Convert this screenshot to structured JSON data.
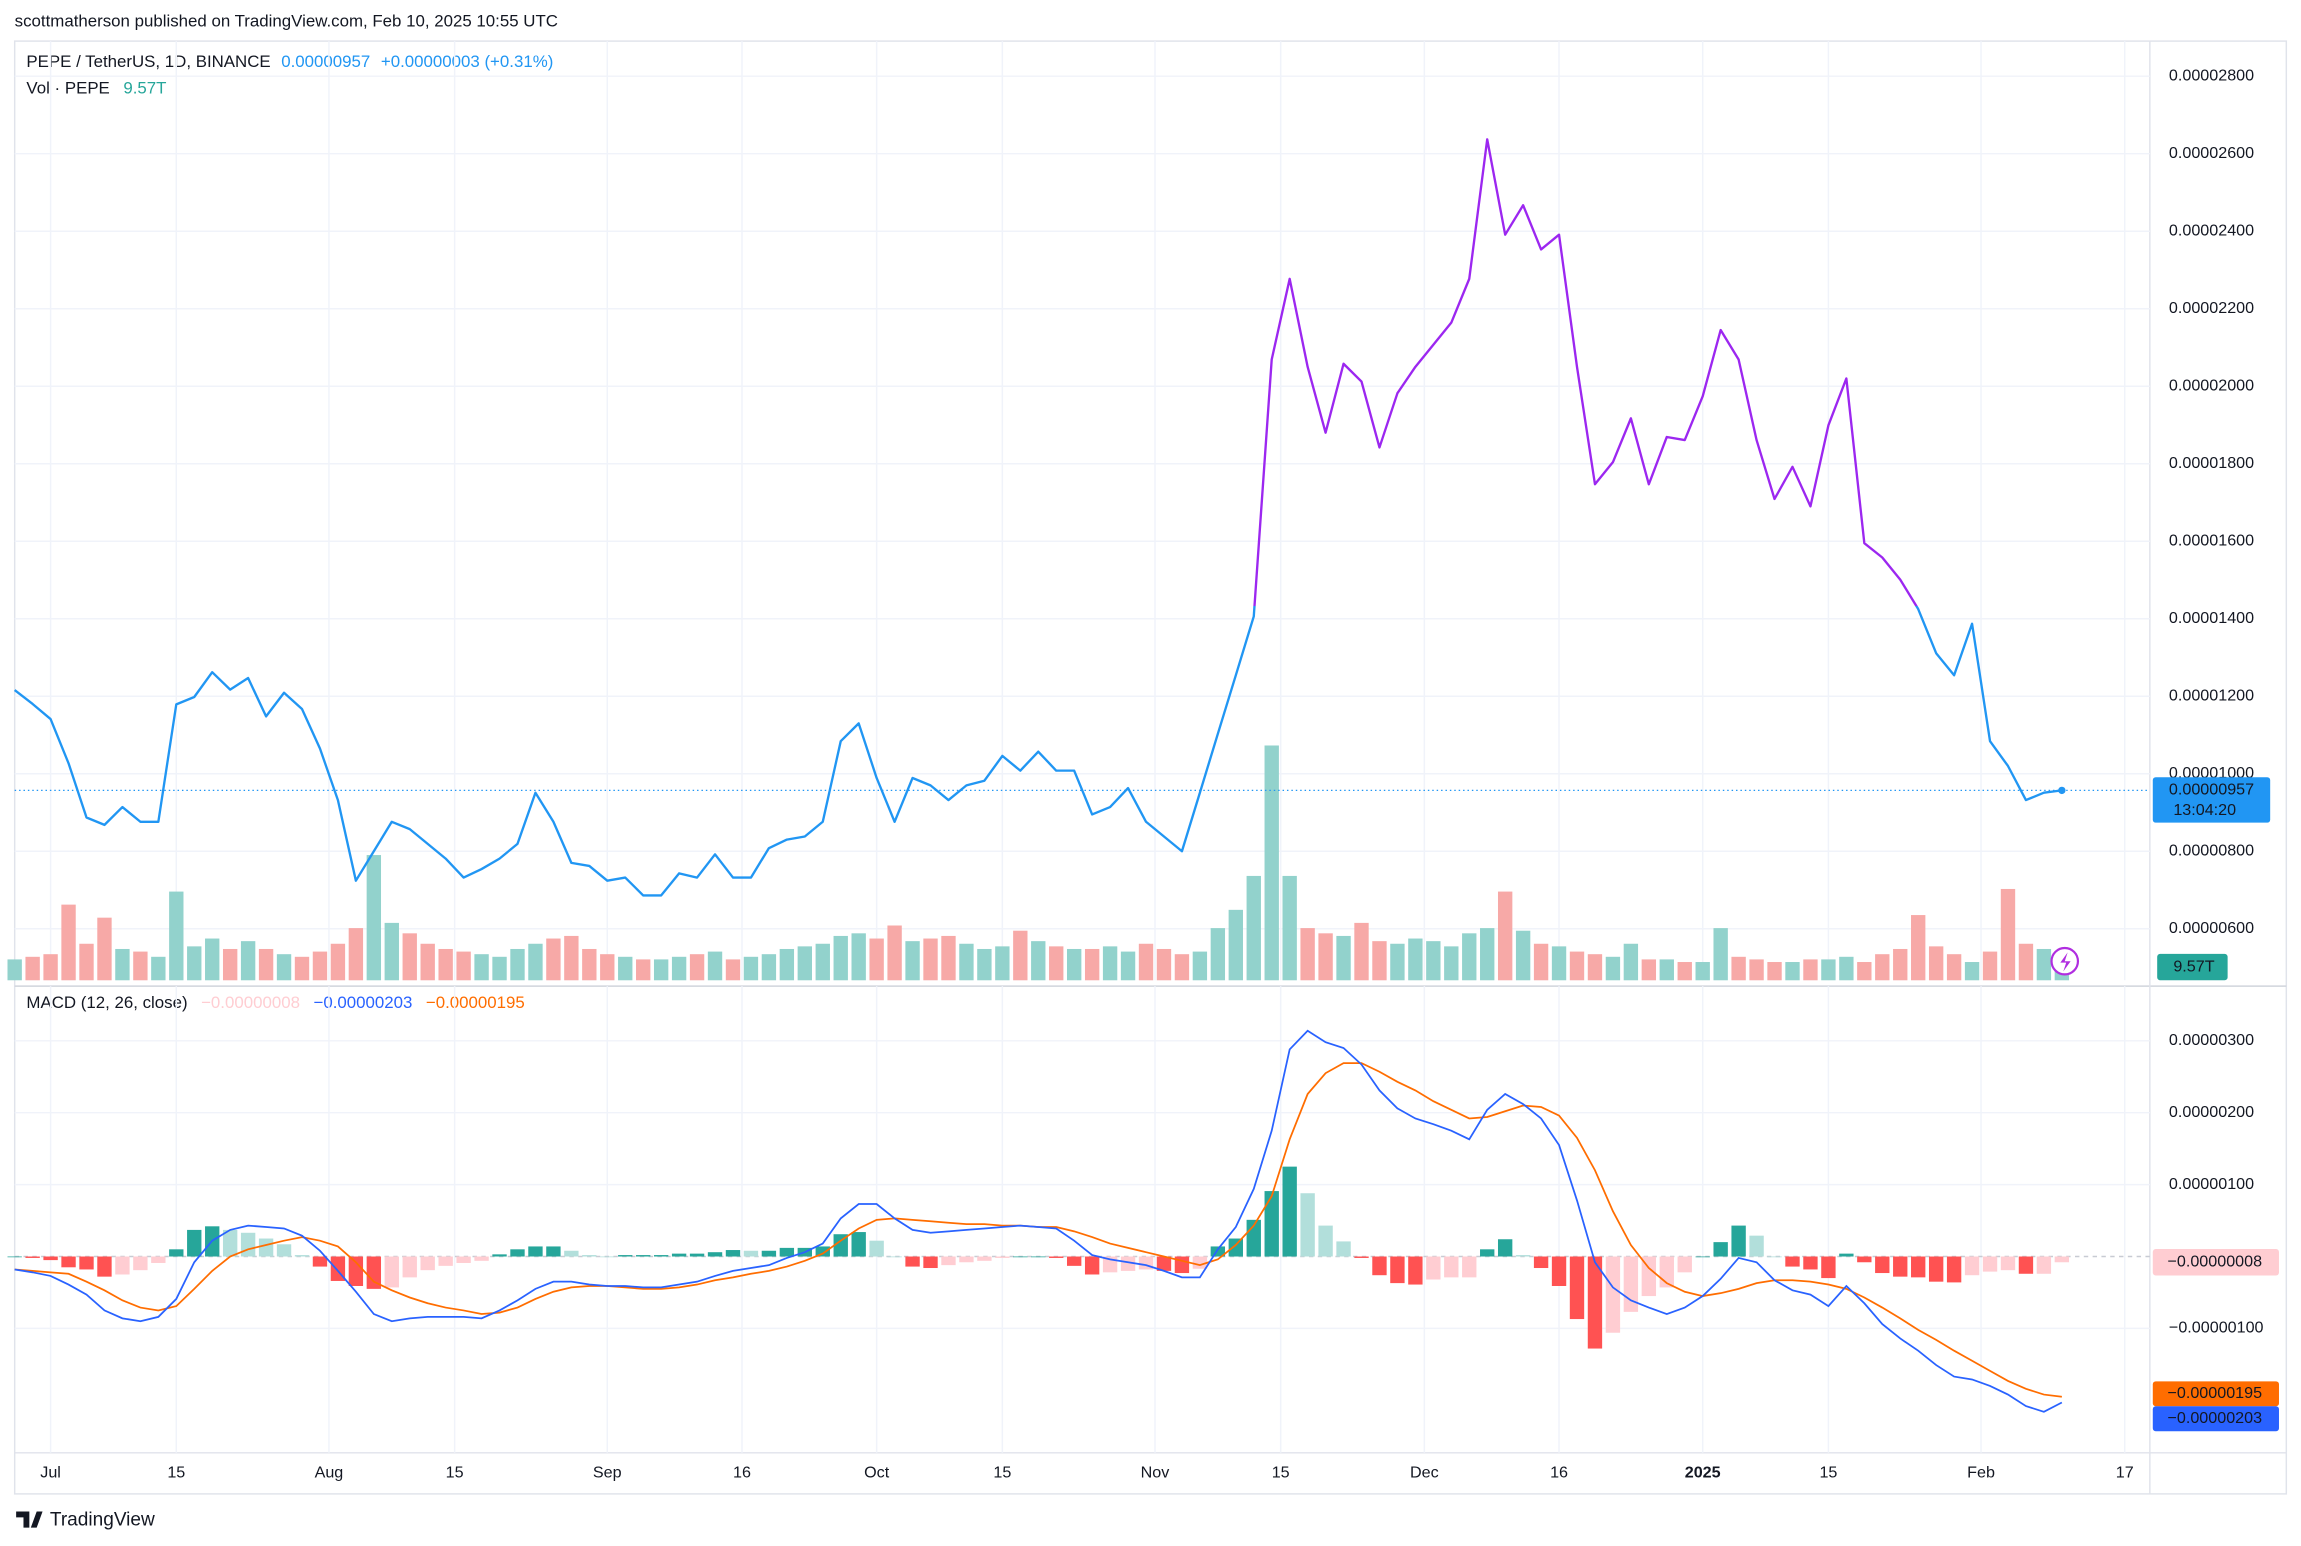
{
  "header": "scottmatherson published on TradingView.com, Feb 10, 2025 10:55 UTC",
  "chart_data": {
    "type": "line",
    "title": "PEPE / TetherUS, 1D, BINANCE",
    "last_price": "0.00000957",
    "change": "+0.00000003 (+0.31%)",
    "countdown": "13:04:20",
    "color_high": "#9c27f0",
    "color_low": "#2196f3",
    "x": [
      -4,
      -2,
      0,
      2,
      4,
      6,
      8,
      10,
      12,
      14,
      16,
      18,
      20,
      22,
      24,
      26,
      28,
      30,
      32,
      34,
      36,
      38,
      40,
      42,
      44,
      46,
      48,
      50,
      52,
      54,
      56,
      58,
      60,
      62,
      64,
      66,
      68,
      70,
      72,
      74,
      76,
      78,
      80,
      82,
      84,
      86,
      88,
      90,
      92,
      94,
      96,
      98,
      100,
      102,
      104,
      106,
      108,
      110,
      112,
      114,
      116,
      118,
      120,
      122,
      124,
      126,
      128,
      130,
      132,
      134,
      136,
      138,
      140,
      142,
      144,
      146,
      148,
      150,
      152,
      154,
      156,
      158,
      160,
      162,
      164,
      166,
      168,
      170,
      172,
      174,
      176,
      178,
      180,
      182,
      184,
      186,
      188,
      190,
      192,
      194,
      196,
      198,
      200,
      202,
      204,
      206,
      208,
      210,
      212,
      214,
      216,
      218,
      220,
      222,
      224
    ],
    "values": [
      1.216e-05,
      1.18e-05,
      1.141e-05,
      1.027e-05,
      8.87e-06,
      8.68e-06,
      9.14e-06,
      8.76e-06,
      8.76e-06,
      1.179e-05,
      1.198e-05,
      1.262e-05,
      1.217e-05,
      1.247e-05,
      1.148e-05,
      1.209e-05,
      1.167e-05,
      1.065e-05,
      9.32e-06,
      7.24e-06,
      8e-06,
      8.76e-06,
      8.57e-06,
      8.19e-06,
      7.81e-06,
      7.32e-06,
      7.54e-06,
      7.81e-06,
      8.19e-06,
      9.51e-06,
      8.76e-06,
      7.7e-06,
      7.62e-06,
      7.24e-06,
      7.32e-06,
      6.86e-06,
      6.86e-06,
      7.43e-06,
      7.32e-06,
      7.92e-06,
      7.32e-06,
      7.32e-06,
      8.08e-06,
      8.3e-06,
      8.38e-06,
      8.76e-06,
      1.084e-05,
      1.13e-05,
      9.89e-06,
      8.76e-06,
      9.89e-06,
      9.7e-06,
      9.32e-06,
      9.7e-06,
      9.82e-06,
      1.046e-05,
      1.008e-05,
      1.057e-05,
      1.008e-05,
      1.008e-05,
      8.95e-06,
      9.14e-06,
      9.63e-06,
      8.76e-06,
      8.38e-06,
      8e-06,
      9.51e-06,
      1.103e-05,
      1.254e-05,
      1.406e-05,
      2.069e-05,
      2.277e-05,
      2.05e-05,
      1.88e-05,
      2.058e-05,
      2.012e-05,
      1.842e-05,
      1.982e-05,
      2.05e-05,
      2.107e-05,
      2.164e-05,
      2.277e-05,
      2.637e-05,
      2.391e-05,
      2.467e-05,
      2.353e-05,
      2.391e-05,
      2.05e-05,
      1.747e-05,
      1.804e-05,
      1.917e-05,
      1.747e-05,
      1.869e-05,
      1.861e-05,
      1.974e-05,
      2.145e-05,
      2.069e-05,
      1.861e-05,
      1.709e-05,
      1.792e-05,
      1.69e-05,
      1.899e-05,
      2.02e-05,
      1.595e-05,
      1.558e-05,
      1.501e-05,
      1.425e-05,
      1.311e-05,
      1.254e-05,
      1.387e-05,
      1.084e-05,
      1.02e-05,
      9.32e-06,
      9.51e-06,
      9.57e-06
    ],
    "xlim": [
      -4,
      233.8
    ],
    "xticks": [
      {
        "value": 0,
        "label": "Jul"
      },
      {
        "value": 14,
        "label": "15"
      },
      {
        "value": 31,
        "label": "Aug"
      },
      {
        "value": 45,
        "label": "15"
      },
      {
        "value": 62,
        "label": "Sep"
      },
      {
        "value": 77,
        "label": "16"
      },
      {
        "value": 92,
        "label": "Oct"
      },
      {
        "value": 106,
        "label": "15"
      },
      {
        "value": 123,
        "label": "Nov"
      },
      {
        "value": 137,
        "label": "15"
      },
      {
        "value": 153,
        "label": "Dec"
      },
      {
        "value": 168,
        "label": "16"
      },
      {
        "value": 184,
        "label": "2025"
      },
      {
        "value": 198,
        "label": "15"
      },
      {
        "value": 215,
        "label": "Feb"
      },
      {
        "value": 231,
        "label": "17"
      }
    ],
    "ylim": [
      4.67e-06,
      2.883e-05
    ],
    "yticks": [
      {
        "value": 6e-06,
        "label": "0.00000600"
      },
      {
        "value": 8e-06,
        "label": "0.00000800"
      },
      {
        "value": 1e-05,
        "label": "0.00001000"
      },
      {
        "value": 1.2e-05,
        "label": "0.00001200"
      },
      {
        "value": 1.4e-05,
        "label": "0.00001400"
      },
      {
        "value": 1.6e-05,
        "label": "0.00001600"
      },
      {
        "value": 1.8e-05,
        "label": "0.00001800"
      },
      {
        "value": 2e-05,
        "label": "0.00002000"
      },
      {
        "value": 2.2e-05,
        "label": "0.00002200"
      },
      {
        "value": 2.4e-05,
        "label": "0.00002400"
      },
      {
        "value": 2.6e-05,
        "label": "0.00002600"
      },
      {
        "value": 2.8e-05,
        "label": "0.00002800"
      }
    ],
    "grid": true,
    "volume": {
      "title": "Vol · PEPE",
      "last_label": "9.57T",
      "up_color": "#92d2cc",
      "down_color": "#f7a9a7",
      "label_color": "#26a69a",
      "values": [
        8,
        9,
        10,
        29,
        14,
        24,
        12,
        11,
        9,
        34,
        13,
        16,
        12,
        15,
        12,
        10,
        9,
        11,
        14,
        20,
        48,
        22,
        18,
        14,
        12,
        11,
        10,
        9,
        12,
        14,
        16,
        17,
        12,
        10,
        9,
        8,
        8,
        9,
        10,
        11,
        8,
        9,
        10,
        12,
        13,
        14,
        17,
        18,
        16,
        21,
        15,
        16,
        17,
        14,
        12,
        13,
        19,
        15,
        13,
        12,
        12,
        13,
        11,
        14,
        12,
        10,
        11,
        20,
        27,
        40,
        90,
        40,
        20,
        18,
        17,
        22,
        15,
        14,
        16,
        15,
        13,
        18,
        20,
        34,
        19,
        14,
        13,
        11,
        10,
        9,
        14,
        8,
        8,
        7,
        7,
        20,
        9,
        8,
        7,
        7,
        8,
        8,
        9,
        7,
        10,
        12,
        25,
        13,
        10,
        7,
        11,
        35,
        14,
        12,
        9.57
      ]
    },
    "macd": {
      "type": "macd",
      "title": "MACD (12, 26, close)",
      "ylim": [
        -2.73e-06,
        3.76e-06
      ],
      "yticks": [
        {
          "value": 3e-06,
          "label": "0.00000300"
        },
        {
          "value": 2e-06,
          "label": "0.00000200"
        },
        {
          "value": 1e-06,
          "label": "0.00000100"
        },
        {
          "value": -1e-06,
          "label": "−0.00000100"
        }
      ],
      "histogram": {
        "last_label": "−0.00000008",
        "colors": [
          "#26a69a",
          "#b2dfdb",
          "#ff5252",
          "#ffcdd2"
        ],
        "values": [
          0,
          -2e-08,
          -5e-08,
          -1.5e-07,
          -1.8e-07,
          -2.8e-07,
          -2.5e-07,
          -1.9e-07,
          -9e-08,
          1e-07,
          3.7e-07,
          4.2e-07,
          3.7e-07,
          3.3e-07,
          2.5e-07,
          1.7e-07,
          2e-08,
          -1.4e-07,
          -3.4e-07,
          -4.1e-07,
          -4.5e-07,
          -4.3e-07,
          -2.9e-07,
          -1.9e-07,
          -1.3e-07,
          -9e-08,
          -6e-08,
          3e-08,
          1e-07,
          1.4e-07,
          1.4e-07,
          8e-08,
          2e-08,
          0,
          2e-08,
          2e-08,
          2e-08,
          4e-08,
          4e-08,
          6e-08,
          9e-08,
          8e-08,
          8e-08,
          1.2e-07,
          1.2e-07,
          1.4e-07,
          3.1e-07,
          3.4e-07,
          2.2e-07,
          0,
          -1.4e-07,
          -1.6e-07,
          -1.2e-07,
          -8e-08,
          -6e-08,
          -2e-08,
          0,
          0,
          -2e-08,
          -1.3e-07,
          -2.5e-07,
          -2.2e-07,
          -2e-07,
          -1.8e-07,
          -2e-07,
          -2.3e-07,
          -1.7e-07,
          1.4e-07,
          2.5e-07,
          5.1e-07,
          9.1e-07,
          1.25e-06,
          8.8e-07,
          4.3e-07,
          2.1e-07,
          -2e-08,
          -2.6e-07,
          -3.7e-07,
          -3.9e-07,
          -3.2e-07,
          -2.9e-07,
          -2.9e-07,
          1e-07,
          2.4e-07,
          2e-08,
          -1.6e-07,
          -4.1e-07,
          -8.7e-07,
          -1.28e-06,
          -1.06e-06,
          -7.7e-07,
          -5.5e-07,
          -4.3e-07,
          -2.2e-07,
          0,
          2e-07,
          4.3e-07,
          2.9e-07,
          0,
          -1.4e-07,
          -1.8e-07,
          -3e-07,
          4e-08,
          -8e-08,
          -2.3e-07,
          -2.8e-07,
          -2.9e-07,
          -3.5e-07,
          -3.6e-07,
          -2.6e-07,
          -2.1e-07,
          -1.9e-07,
          -2.4e-07,
          -2.4e-07,
          -8e-08
        ]
      },
      "macd": {
        "color": "#2962ff",
        "last_label": "−0.00000203",
        "values": [
          -1.8e-07,
          -2.2e-07,
          -2.7e-07,
          -3.9e-07,
          -5.3e-07,
          -7.5e-07,
          -8.6e-07,
          -9e-07,
          -8.4e-07,
          -5.9e-07,
          -8e-08,
          2.2e-07,
          3.7e-07,
          4.3e-07,
          4.1e-07,
          3.9e-07,
          2.9e-07,
          8e-08,
          -2e-07,
          -4.9e-07,
          -8e-07,
          -9e-07,
          -8.6e-07,
          -8.4e-07,
          -8.4e-07,
          -8.4e-07,
          -8.6e-07,
          -7.5e-07,
          -6.1e-07,
          -4.5e-07,
          -3.5e-07,
          -3.5e-07,
          -3.9e-07,
          -4.1e-07,
          -4.1e-07,
          -4.3e-07,
          -4.3e-07,
          -3.9e-07,
          -3.5e-07,
          -2.7e-07,
          -2e-07,
          -1.6e-07,
          -1.2e-07,
          -2e-08,
          6e-08,
          1.8e-07,
          5.3e-07,
          7.3e-07,
          7.3e-07,
          5.3e-07,
          3.7e-07,
          3.3e-07,
          3.5e-07,
          3.7e-07,
          3.9e-07,
          4.1e-07,
          4.3e-07,
          4.1e-07,
          3.9e-07,
          2.2e-07,
          2e-08,
          -4e-08,
          -8e-08,
          -1.2e-07,
          -2e-07,
          -2.9e-07,
          -2.9e-07,
          1e-07,
          4.1e-07,
          9.4e-07,
          1.75e-06,
          2.88e-06,
          3.14e-06,
          2.98e-06,
          2.9e-06,
          2.67e-06,
          2.31e-06,
          2.06e-06,
          1.92e-06,
          1.84e-06,
          1.75e-06,
          1.63e-06,
          2.04e-06,
          2.26e-06,
          2.12e-06,
          1.92e-06,
          1.55e-06,
          7.8e-07,
          -8e-08,
          -4.3e-07,
          -6.1e-07,
          -7.1e-07,
          -8e-07,
          -7.1e-07,
          -5.5e-07,
          -3.1e-07,
          -2e-08,
          -8e-08,
          -3.3e-07,
          -4.7e-07,
          -5.3e-07,
          -6.9e-07,
          -4.1e-07,
          -6.5e-07,
          -9.4e-07,
          -1.14e-06,
          -1.31e-06,
          -1.51e-06,
          -1.67e-06,
          -1.71e-06,
          -1.8e-06,
          -1.92e-06,
          -2.08e-06,
          -2.16e-06,
          -2.03e-06
        ]
      },
      "signal": {
        "color": "#ff6d00",
        "last_label": "−0.00000195",
        "values": [
          -1.8e-07,
          -2e-07,
          -2.2e-07,
          -2.4e-07,
          -3.5e-07,
          -4.7e-07,
          -6.1e-07,
          -7.1e-07,
          -7.5e-07,
          -6.9e-07,
          -4.5e-07,
          -2e-07,
          0,
          1e-07,
          1.6e-07,
          2.2e-07,
          2.7e-07,
          2.2e-07,
          1.4e-07,
          -8e-08,
          -3.5e-07,
          -4.7e-07,
          -5.7e-07,
          -6.5e-07,
          -7.1e-07,
          -7.5e-07,
          -8e-07,
          -7.8e-07,
          -7.1e-07,
          -5.9e-07,
          -4.9e-07,
          -4.3e-07,
          -4.1e-07,
          -4.1e-07,
          -4.3e-07,
          -4.5e-07,
          -4.5e-07,
          -4.3e-07,
          -3.9e-07,
          -3.3e-07,
          -2.9e-07,
          -2.4e-07,
          -2e-07,
          -1.4e-07,
          -6e-08,
          4e-08,
          2.2e-07,
          3.9e-07,
          5.1e-07,
          5.3e-07,
          5.1e-07,
          4.9e-07,
          4.7e-07,
          4.5e-07,
          4.5e-07,
          4.3e-07,
          4.3e-07,
          4.1e-07,
          4.1e-07,
          3.5e-07,
          2.7e-07,
          1.8e-07,
          1.2e-07,
          6e-08,
          0,
          -6e-08,
          -1.2e-07,
          -4e-08,
          1.6e-07,
          4.3e-07,
          8.4e-07,
          1.63e-06,
          2.26e-06,
          2.55e-06,
          2.69e-06,
          2.69e-06,
          2.57e-06,
          2.43e-06,
          2.31e-06,
          2.16e-06,
          2.04e-06,
          1.92e-06,
          1.94e-06,
          2.02e-06,
          2.1e-06,
          2.08e-06,
          1.96e-06,
          1.65e-06,
          1.2e-06,
          6.3e-07,
          1.6e-07,
          -1.6e-07,
          -3.7e-07,
          -4.9e-07,
          -5.5e-07,
          -5.1e-07,
          -4.5e-07,
          -3.7e-07,
          -3.3e-07,
          -3.3e-07,
          -3.5e-07,
          -3.9e-07,
          -4.5e-07,
          -5.7e-07,
          -7.1e-07,
          -8.6e-07,
          -1.02e-06,
          -1.16e-06,
          -1.31e-06,
          -1.45e-06,
          -1.59e-06,
          -1.73e-06,
          -1.84e-06,
          -1.92e-06,
          -1.95e-06
        ]
      }
    }
  },
  "footer": "TradingView"
}
